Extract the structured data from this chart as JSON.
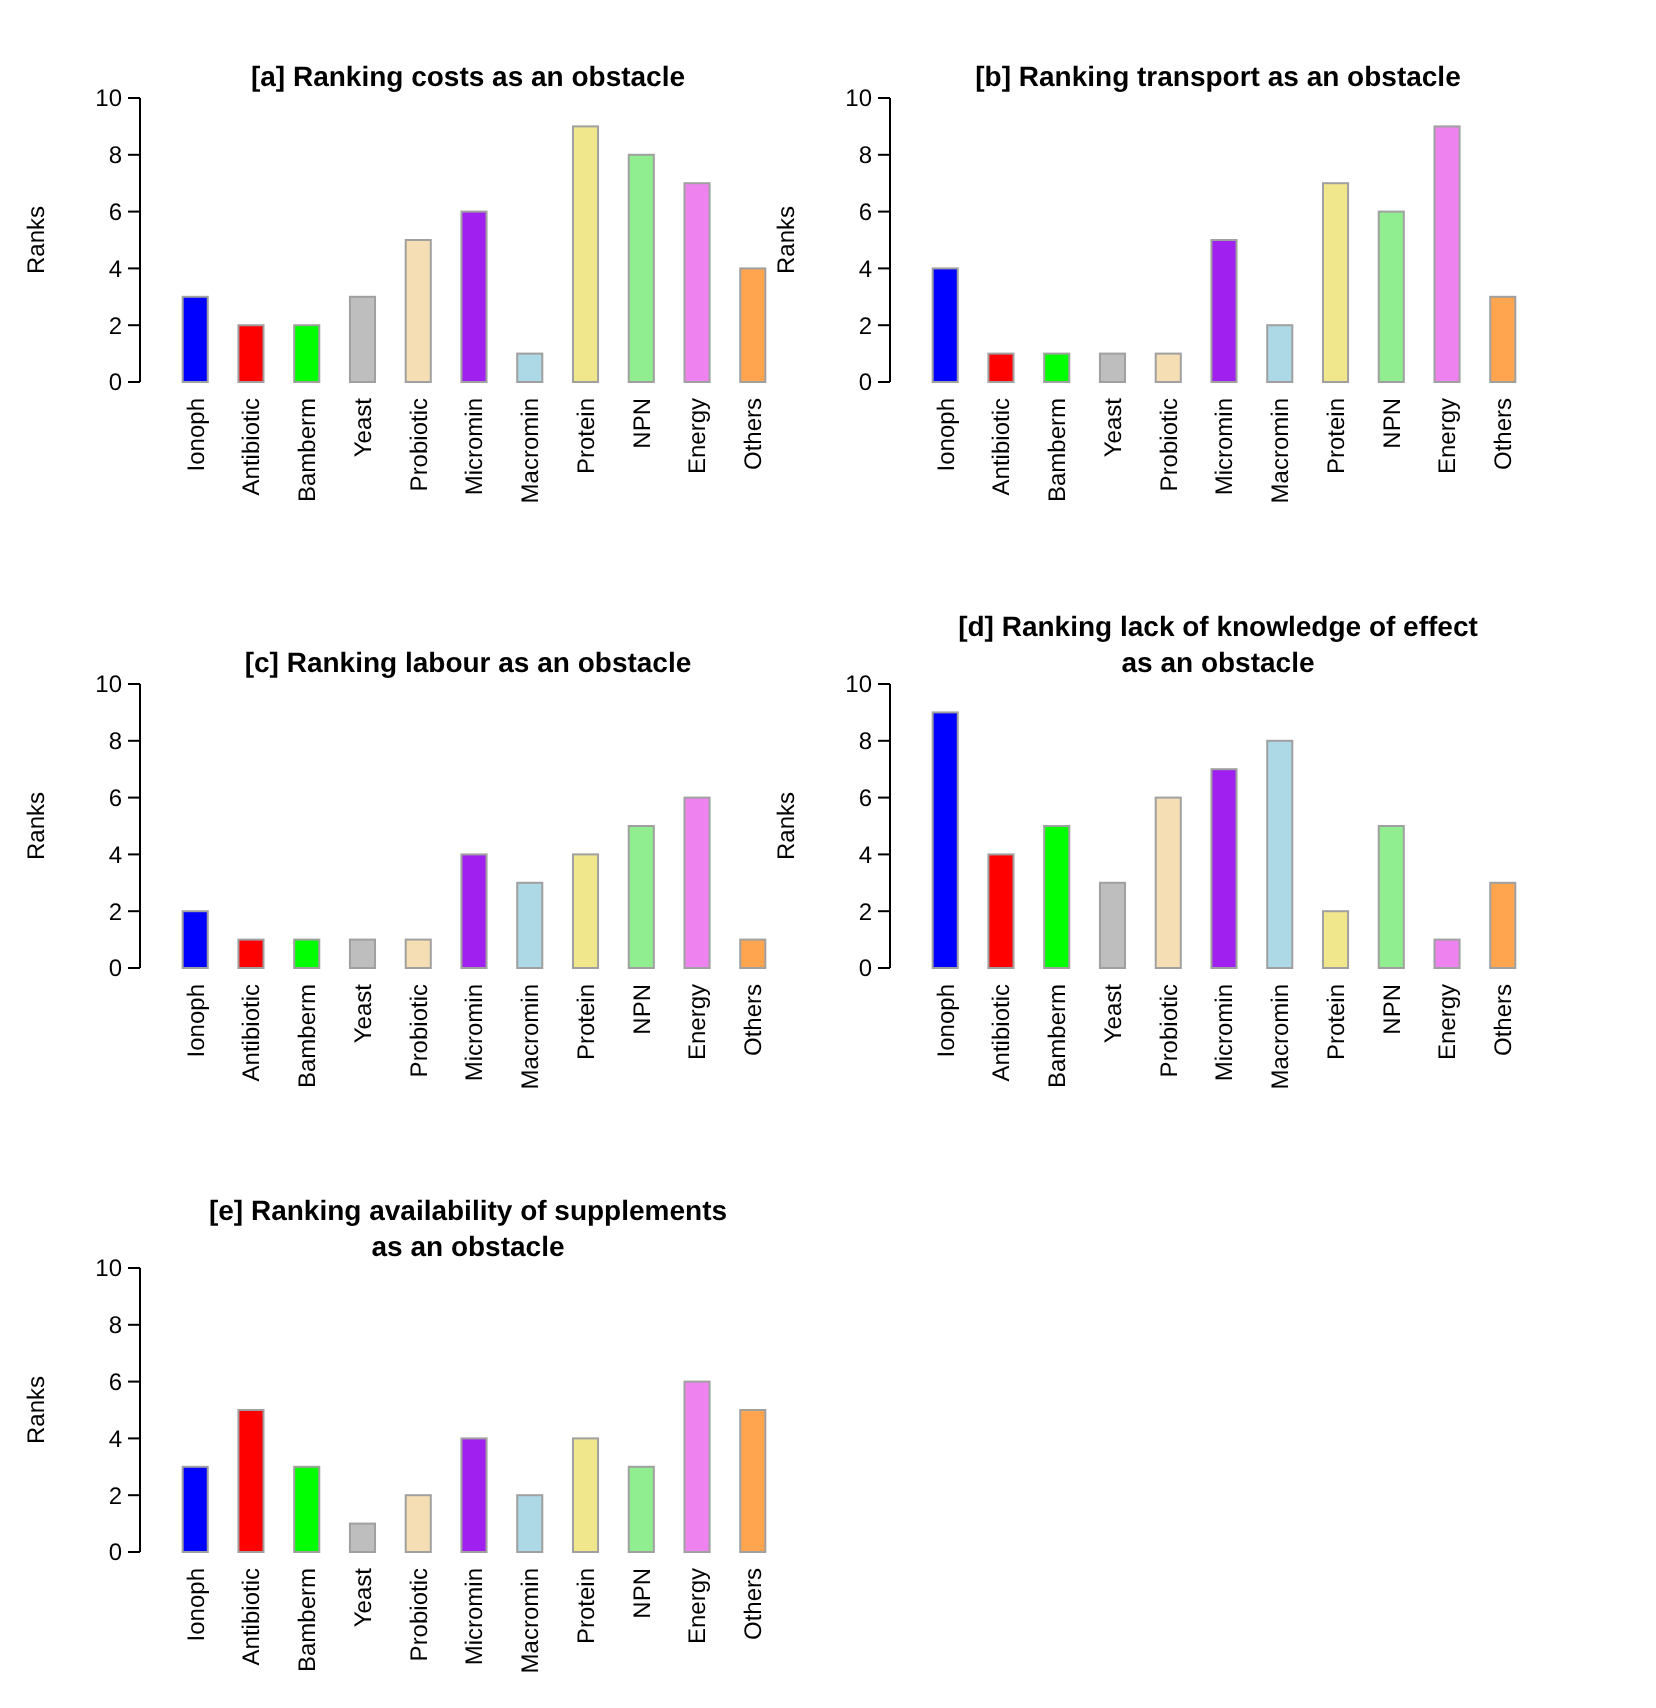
{
  "chart_data": [
    {
      "type": "bar",
      "title": "[a] Ranking costs as an obstacle",
      "ylabel": "Ranks",
      "categories": [
        "Ionoph",
        "Antibiotic",
        "Bamberm",
        "Yeast",
        "Probiotic",
        "Micromin",
        "Macromin",
        "Protein",
        "NPN",
        "Energy",
        "Others"
      ],
      "values": [
        3,
        2,
        2,
        3,
        5,
        6,
        1,
        9,
        8,
        7,
        4
      ],
      "colors": [
        "#0000ff",
        "#ff0000",
        "#00ff00",
        "#bebebe",
        "#f5deb3",
        "#a020f0",
        "#add8e6",
        "#f0e68c",
        "#90ee90",
        "#ee82ee",
        "#ffa54f"
      ],
      "ylim": [
        0,
        10
      ],
      "yticks": [
        0,
        2,
        4,
        6,
        8,
        10
      ]
    },
    {
      "type": "bar",
      "title": "[b] Ranking transport as an obstacle",
      "ylabel": "Ranks",
      "categories": [
        "Ionoph",
        "Antibiotic",
        "Bamberm",
        "Yeast",
        "Probiotic",
        "Micromin",
        "Macromin",
        "Protein",
        "NPN",
        "Energy",
        "Others"
      ],
      "values": [
        4,
        1,
        1,
        1,
        1,
        5,
        2,
        7,
        6,
        9,
        3
      ],
      "colors": [
        "#0000ff",
        "#ff0000",
        "#00ff00",
        "#bebebe",
        "#f5deb3",
        "#a020f0",
        "#add8e6",
        "#f0e68c",
        "#90ee90",
        "#ee82ee",
        "#ffa54f"
      ],
      "ylim": [
        0,
        10
      ],
      "yticks": [
        0,
        2,
        4,
        6,
        8,
        10
      ]
    },
    {
      "type": "bar",
      "title": "[c] Ranking labour as an obstacle",
      "ylabel": "Ranks",
      "categories": [
        "Ionoph",
        "Antibiotic",
        "Bamberm",
        "Yeast",
        "Probiotic",
        "Micromin",
        "Macromin",
        "Protein",
        "NPN",
        "Energy",
        "Others"
      ],
      "values": [
        2,
        1,
        1,
        1,
        1,
        4,
        3,
        4,
        5,
        6,
        1
      ],
      "colors": [
        "#0000ff",
        "#ff0000",
        "#00ff00",
        "#bebebe",
        "#f5deb3",
        "#a020f0",
        "#add8e6",
        "#f0e68c",
        "#90ee90",
        "#ee82ee",
        "#ffa54f"
      ],
      "ylim": [
        0,
        10
      ],
      "yticks": [
        0,
        2,
        4,
        6,
        8,
        10
      ]
    },
    {
      "type": "bar",
      "title": "[d] Ranking lack of knowledge of effect as an obstacle",
      "ylabel": "Ranks",
      "categories": [
        "Ionoph",
        "Antibiotic",
        "Bamberm",
        "Yeast",
        "Probiotic",
        "Micromin",
        "Macromin",
        "Protein",
        "NPN",
        "Energy",
        "Others"
      ],
      "values": [
        9,
        4,
        5,
        3,
        6,
        7,
        8,
        2,
        5,
        1,
        3
      ],
      "colors": [
        "#0000ff",
        "#ff0000",
        "#00ff00",
        "#bebebe",
        "#f5deb3",
        "#a020f0",
        "#add8e6",
        "#f0e68c",
        "#90ee90",
        "#ee82ee",
        "#ffa54f"
      ],
      "ylim": [
        0,
        10
      ],
      "yticks": [
        0,
        2,
        4,
        6,
        8,
        10
      ]
    },
    {
      "type": "bar",
      "title": "[e] Ranking availability of supplements as an obstacle",
      "ylabel": "Ranks",
      "categories": [
        "Ionoph",
        "Antibiotic",
        "Bamberm",
        "Yeast",
        "Probiotic",
        "Micromin",
        "Macromin",
        "Protein",
        "NPN",
        "Energy",
        "Others"
      ],
      "values": [
        3,
        5,
        3,
        1,
        2,
        4,
        2,
        4,
        3,
        6,
        5
      ],
      "colors": [
        "#0000ff",
        "#ff0000",
        "#00ff00",
        "#bebebe",
        "#f5deb3",
        "#a020f0",
        "#add8e6",
        "#f0e68c",
        "#90ee90",
        "#ee82ee",
        "#ffa54f"
      ],
      "ylim": [
        0,
        10
      ],
      "yticks": [
        0,
        2,
        4,
        6,
        8,
        10
      ]
    }
  ]
}
